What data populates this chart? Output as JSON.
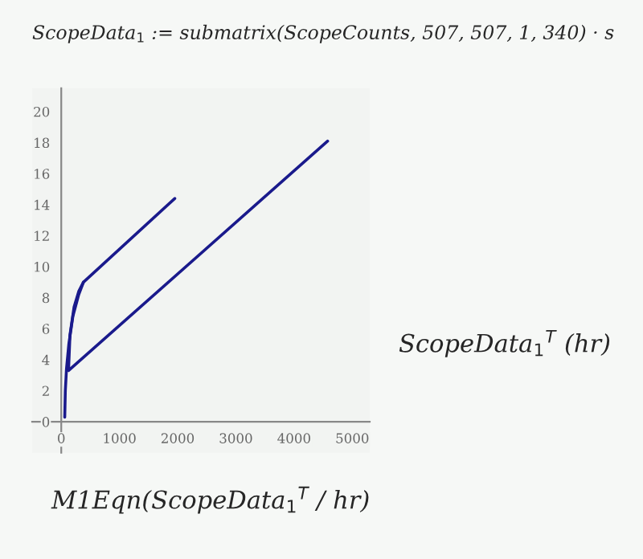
{
  "chart_data": {
    "type": "line",
    "title": "ScopeData$_{1}$ := submatrix(ScopeCounts, 507, 507, 1, 340) · s",
    "xlabel": "M1Eqn(ScopeData$_{1}$$^{T}$ / hr)",
    "ylabel": "ScopeData$_{1}$$^{T}$ (hr)",
    "series": [
      {
        "color": "#1a1a8c",
        "x": [
          60,
          70,
          90,
          130,
          200,
          300,
          381,
          1951
        ],
        "values": [
          0.3,
          2,
          3.4,
          5,
          6.8,
          8.2,
          9.0,
          14.4
        ]
      },
      {
        "color": "#1a1a8c",
        "x": [
          4577,
          125,
          150,
          220,
          300,
          381
        ],
        "values": [
          18.1,
          3.3,
          5.6,
          7.4,
          8.4,
          9.0
        ]
      }
    ],
    "xlim": [
      -500,
      5300
    ],
    "ylim": [
      -2,
      21.5
    ],
    "xticks": [
      0,
      1000,
      2000,
      3000,
      4000,
      5000
    ],
    "yticks": [
      0,
      2,
      4,
      6,
      8,
      10,
      12,
      14,
      16,
      18,
      20
    ],
    "grid": false
  }
}
